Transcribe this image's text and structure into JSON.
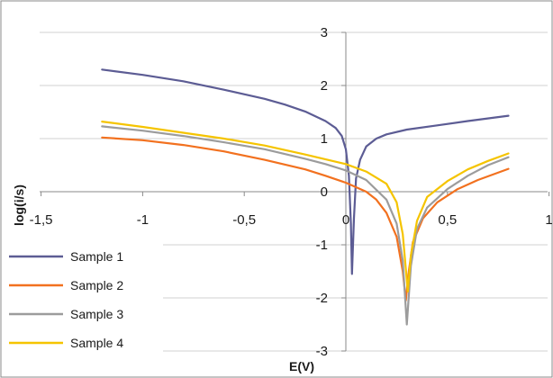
{
  "chart_data": {
    "type": "line",
    "title": "",
    "xlabel": "E(V)",
    "ylabel": "log(i/s)",
    "xlim": [
      -1.5,
      1
    ],
    "ylim": [
      -3,
      3
    ],
    "x_ticks": [
      "-1,5",
      "-1",
      "-0,5",
      "0",
      "0,5",
      "1"
    ],
    "y_ticks": [
      "-3",
      "-2",
      "-1",
      "0",
      "1",
      "2",
      "3"
    ],
    "grid": "horizontal",
    "legend_position": "bottom-left",
    "series": [
      {
        "name": "Sample 1",
        "color": "#5c5c94",
        "points": [
          [
            -1.2,
            2.3
          ],
          [
            -1.0,
            2.2
          ],
          [
            -0.8,
            2.08
          ],
          [
            -0.6,
            1.92
          ],
          [
            -0.4,
            1.75
          ],
          [
            -0.3,
            1.64
          ],
          [
            -0.2,
            1.51
          ],
          [
            -0.1,
            1.33
          ],
          [
            -0.05,
            1.2
          ],
          [
            -0.02,
            1.05
          ],
          [
            0.0,
            0.8
          ],
          [
            0.015,
            0.3
          ],
          [
            0.025,
            -0.6
          ],
          [
            0.03,
            -1.55
          ],
          [
            0.04,
            -0.5
          ],
          [
            0.05,
            0.25
          ],
          [
            0.07,
            0.6
          ],
          [
            0.1,
            0.85
          ],
          [
            0.15,
            1.0
          ],
          [
            0.2,
            1.08
          ],
          [
            0.3,
            1.17
          ],
          [
            0.45,
            1.25
          ],
          [
            0.6,
            1.33
          ],
          [
            0.8,
            1.43
          ]
        ]
      },
      {
        "name": "Sample 2",
        "color": "#f2711f",
        "points": [
          [
            -1.2,
            1.02
          ],
          [
            -1.0,
            0.97
          ],
          [
            -0.8,
            0.88
          ],
          [
            -0.6,
            0.76
          ],
          [
            -0.4,
            0.6
          ],
          [
            -0.2,
            0.42
          ],
          [
            -0.1,
            0.3
          ],
          [
            0.0,
            0.17
          ],
          [
            0.1,
            0.0
          ],
          [
            0.15,
            -0.15
          ],
          [
            0.2,
            -0.4
          ],
          [
            0.25,
            -0.85
          ],
          [
            0.28,
            -1.5
          ],
          [
            0.295,
            -2.05
          ],
          [
            0.31,
            -1.5
          ],
          [
            0.33,
            -0.95
          ],
          [
            0.38,
            -0.5
          ],
          [
            0.45,
            -0.2
          ],
          [
            0.55,
            0.05
          ],
          [
            0.65,
            0.22
          ],
          [
            0.8,
            0.43
          ]
        ]
      },
      {
        "name": "Sample 3",
        "color": "#9c9c9c",
        "points": [
          [
            -1.2,
            1.23
          ],
          [
            -1.0,
            1.15
          ],
          [
            -0.8,
            1.05
          ],
          [
            -0.6,
            0.93
          ],
          [
            -0.4,
            0.8
          ],
          [
            -0.2,
            0.62
          ],
          [
            -0.1,
            0.52
          ],
          [
            0.0,
            0.4
          ],
          [
            0.1,
            0.22
          ],
          [
            0.2,
            -0.15
          ],
          [
            0.25,
            -0.6
          ],
          [
            0.28,
            -1.3
          ],
          [
            0.3,
            -2.5
          ],
          [
            0.32,
            -1.4
          ],
          [
            0.35,
            -0.7
          ],
          [
            0.4,
            -0.3
          ],
          [
            0.5,
            0.05
          ],
          [
            0.6,
            0.3
          ],
          [
            0.7,
            0.5
          ],
          [
            0.8,
            0.65
          ]
        ]
      },
      {
        "name": "Sample 4",
        "color": "#f5c400",
        "points": [
          [
            -1.2,
            1.32
          ],
          [
            -1.0,
            1.22
          ],
          [
            -0.8,
            1.11
          ],
          [
            -0.6,
            1.0
          ],
          [
            -0.4,
            0.87
          ],
          [
            -0.2,
            0.7
          ],
          [
            0.0,
            0.52
          ],
          [
            0.1,
            0.38
          ],
          [
            0.2,
            0.15
          ],
          [
            0.25,
            -0.2
          ],
          [
            0.28,
            -0.8
          ],
          [
            0.305,
            -1.88
          ],
          [
            0.32,
            -1.2
          ],
          [
            0.35,
            -0.55
          ],
          [
            0.4,
            -0.1
          ],
          [
            0.5,
            0.2
          ],
          [
            0.6,
            0.42
          ],
          [
            0.7,
            0.58
          ],
          [
            0.8,
            0.72
          ]
        ]
      }
    ]
  }
}
